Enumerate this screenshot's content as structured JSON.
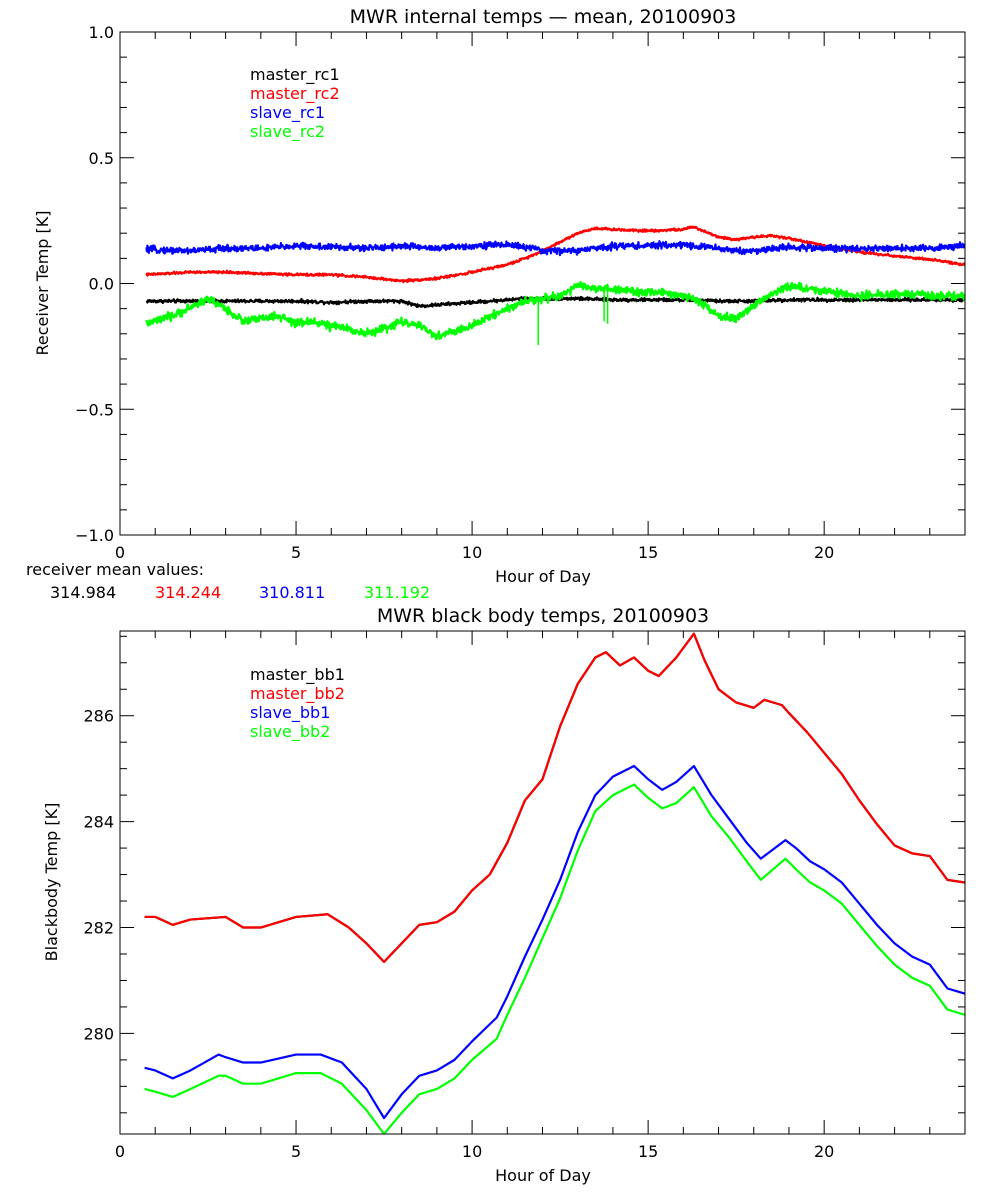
{
  "chart_data": [
    {
      "type": "line",
      "title": "MWR internal temps — mean, 20100903",
      "xlabel": "Hour of Day",
      "ylabel": "Receiver Temp [K]",
      "xlim": [
        0,
        24
      ],
      "ylim": [
        -1.0,
        1.0
      ],
      "xticks": [
        0,
        5,
        10,
        15,
        20
      ],
      "xtick_labels": [
        "0",
        "5",
        "10",
        "15",
        "20"
      ],
      "yticks": [
        -1.0,
        -0.5,
        0.0,
        0.5,
        1.0
      ],
      "ytick_labels": [
        "−1.0",
        "−0.5",
        "0.0",
        "0.5",
        "1.0"
      ],
      "grid": false,
      "legend_position": "top-left",
      "series": [
        {
          "name": "master_rc1",
          "color": "#000000",
          "noise": 0.004,
          "x": [
            0.75,
            2,
            3,
            4,
            5,
            6,
            7,
            8,
            8.5,
            9,
            10,
            11,
            11.5,
            12,
            13,
            14,
            15,
            16,
            17,
            18,
            19,
            20,
            21,
            22,
            23,
            24
          ],
          "y": [
            -0.07,
            -0.07,
            -0.07,
            -0.07,
            -0.07,
            -0.075,
            -0.07,
            -0.07,
            -0.09,
            -0.085,
            -0.075,
            -0.065,
            -0.06,
            -0.06,
            -0.06,
            -0.065,
            -0.065,
            -0.065,
            -0.07,
            -0.07,
            -0.065,
            -0.065,
            -0.065,
            -0.065,
            -0.065,
            -0.065
          ]
        },
        {
          "name": "master_rc2",
          "color": "#ff0000",
          "noise": 0.003,
          "x": [
            0.75,
            2,
            3,
            4,
            5,
            6,
            7,
            8,
            9,
            10,
            11,
            11.5,
            12,
            13,
            13.5,
            14,
            15,
            16,
            16.3,
            17,
            17.5,
            18,
            18.5,
            19,
            20,
            21,
            22,
            23,
            24
          ],
          "y": [
            0.035,
            0.045,
            0.045,
            0.04,
            0.035,
            0.035,
            0.025,
            0.01,
            0.02,
            0.045,
            0.075,
            0.1,
            0.13,
            0.2,
            0.22,
            0.215,
            0.21,
            0.215,
            0.225,
            0.185,
            0.175,
            0.185,
            0.19,
            0.18,
            0.15,
            0.125,
            0.11,
            0.095,
            0.075
          ]
        },
        {
          "name": "slave_rc1",
          "color": "#0000ff",
          "noise": 0.008,
          "x": [
            0.75,
            2,
            3,
            4,
            5,
            6,
            7,
            8,
            9,
            10,
            11,
            11.5,
            12,
            13,
            14,
            15,
            16,
            17,
            17.5,
            18,
            19,
            20,
            21,
            22,
            23,
            24
          ],
          "y": [
            0.135,
            0.13,
            0.14,
            0.14,
            0.15,
            0.145,
            0.14,
            0.15,
            0.14,
            0.15,
            0.155,
            0.145,
            0.13,
            0.13,
            0.15,
            0.15,
            0.155,
            0.14,
            0.13,
            0.13,
            0.145,
            0.14,
            0.14,
            0.14,
            0.14,
            0.15
          ]
        },
        {
          "name": "slave_rc2",
          "color": "#00ff00",
          "noise": 0.01,
          "x": [
            0.75,
            1.5,
            2.5,
            3,
            3.5,
            4,
            4.5,
            5,
            5.5,
            6,
            6.5,
            7,
            7.5,
            8,
            8.5,
            9,
            9.5,
            10,
            10.5,
            11,
            11.5,
            12,
            12.5,
            13,
            14,
            15,
            16,
            16.5,
            17,
            17.5,
            18,
            18.5,
            19,
            20,
            21,
            22,
            23,
            24
          ],
          "y": [
            -0.16,
            -0.13,
            -0.06,
            -0.1,
            -0.15,
            -0.14,
            -0.13,
            -0.16,
            -0.15,
            -0.17,
            -0.18,
            -0.2,
            -0.18,
            -0.15,
            -0.17,
            -0.21,
            -0.19,
            -0.17,
            -0.13,
            -0.1,
            -0.07,
            -0.06,
            -0.05,
            -0.01,
            -0.025,
            -0.035,
            -0.045,
            -0.08,
            -0.13,
            -0.14,
            -0.09,
            -0.04,
            -0.01,
            -0.03,
            -0.05,
            -0.04,
            -0.05,
            -0.05
          ],
          "spikes": [
            {
              "x": 11.88,
              "y": -0.245
            },
            {
              "x": 13.75,
              "y": -0.15
            },
            {
              "x": 13.85,
              "y": -0.16
            }
          ]
        }
      ]
    },
    {
      "type": "line",
      "title": "MWR black body temps, 20100903",
      "xlabel": "Hour of Day",
      "ylabel": "Blackbody Temp [K]",
      "xlim": [
        0,
        24
      ],
      "ylim": [
        278.1,
        287.6
      ],
      "xticks": [
        0,
        5,
        10,
        15,
        20
      ],
      "xtick_labels": [
        "0",
        "5",
        "10",
        "15",
        "20"
      ],
      "yticks": [
        280,
        282,
        284,
        286
      ],
      "ytick_labels": [
        "280",
        "282",
        "284",
        "286"
      ],
      "grid": false,
      "legend_position": "top-left",
      "series": [
        {
          "name": "master_bb1",
          "color": "#000000",
          "x": [
            0.7,
            1,
            1.5,
            2,
            3,
            3.5,
            4,
            5,
            5.9,
            6.5,
            7,
            7.5,
            8,
            8.5,
            9,
            9.5,
            10,
            10.5,
            11,
            11.5,
            12,
            12.5,
            13,
            13.5,
            13.8,
            14.2,
            14.6,
            15,
            15.3,
            15.8,
            16.3,
            16.6,
            17,
            17.5,
            18,
            18.3,
            18.8,
            19,
            19.5,
            20,
            20.5,
            21,
            21.5,
            22,
            22.5,
            23,
            23.5,
            24
          ],
          "y": [
            282.2,
            282.2,
            282.05,
            282.15,
            282.2,
            282.0,
            282.0,
            282.2,
            282.25,
            282.0,
            281.7,
            281.35,
            281.7,
            282.05,
            282.1,
            282.3,
            282.7,
            283.0,
            283.6,
            284.4,
            284.8,
            285.8,
            286.6,
            287.1,
            287.2,
            286.95,
            287.1,
            286.85,
            286.75,
            287.1,
            287.55,
            287.05,
            286.5,
            286.25,
            286.15,
            286.3,
            286.2,
            286.05,
            285.7,
            285.3,
            284.9,
            284.4,
            283.95,
            283.55,
            283.4,
            283.35,
            282.9,
            282.85
          ]
        },
        {
          "name": "master_bb2",
          "color": "#ff0000",
          "x": [
            0.7,
            1,
            1.5,
            2,
            3,
            3.5,
            4,
            5,
            5.9,
            6.5,
            7,
            7.5,
            8,
            8.5,
            9,
            9.5,
            10,
            10.5,
            11,
            11.5,
            12,
            12.5,
            13,
            13.5,
            13.8,
            14.2,
            14.6,
            15,
            15.3,
            15.8,
            16.3,
            16.6,
            17,
            17.5,
            18,
            18.3,
            18.8,
            19,
            19.5,
            20,
            20.5,
            21,
            21.5,
            22,
            22.5,
            23,
            23.5,
            24
          ],
          "y": [
            282.2,
            282.2,
            282.05,
            282.15,
            282.2,
            282.0,
            282.0,
            282.2,
            282.25,
            282.0,
            281.7,
            281.35,
            281.7,
            282.05,
            282.1,
            282.3,
            282.7,
            283.0,
            283.6,
            284.4,
            284.8,
            285.8,
            286.6,
            287.1,
            287.2,
            286.95,
            287.1,
            286.85,
            286.75,
            287.1,
            287.55,
            287.05,
            286.5,
            286.25,
            286.15,
            286.3,
            286.2,
            286.05,
            285.7,
            285.3,
            284.9,
            284.4,
            283.95,
            283.55,
            283.4,
            283.35,
            282.9,
            282.85
          ]
        },
        {
          "name": "slave_bb1",
          "color": "#0000ff",
          "x": [
            0.7,
            1,
            1.5,
            2,
            2.8,
            3,
            3.5,
            4,
            5,
            5.7,
            6.3,
            7,
            7.5,
            8,
            8.5,
            9,
            9.5,
            10,
            10.7,
            11,
            11.5,
            12,
            12.5,
            13,
            13.5,
            14,
            14.6,
            15,
            15.4,
            15.8,
            16.3,
            16.8,
            17.3,
            17.8,
            18.2,
            18.9,
            19.2,
            19.6,
            20,
            20.5,
            21,
            21.5,
            22,
            22.5,
            23,
            23.5,
            24
          ],
          "y": [
            279.35,
            279.3,
            279.15,
            279.3,
            279.6,
            279.55,
            279.45,
            279.45,
            279.6,
            279.6,
            279.45,
            278.95,
            278.4,
            278.85,
            279.2,
            279.3,
            279.5,
            279.85,
            280.3,
            280.7,
            281.45,
            282.15,
            282.9,
            283.8,
            284.5,
            284.85,
            285.05,
            284.8,
            284.6,
            284.75,
            285.05,
            284.5,
            284.05,
            283.6,
            283.3,
            283.65,
            283.5,
            283.25,
            283.1,
            282.85,
            282.45,
            282.05,
            281.7,
            281.45,
            281.3,
            280.85,
            280.75
          ]
        },
        {
          "name": "slave_bb2",
          "color": "#00ff00",
          "x": [
            0.7,
            1,
            1.5,
            2,
            2.8,
            3,
            3.5,
            4,
            5,
            5.7,
            6.3,
            7,
            7.5,
            8,
            8.5,
            9,
            9.5,
            10,
            10.7,
            11,
            11.5,
            12,
            12.5,
            13,
            13.5,
            14,
            14.6,
            15,
            15.4,
            15.8,
            16.3,
            16.8,
            17.3,
            17.8,
            18.2,
            18.9,
            19.2,
            19.6,
            20,
            20.5,
            21,
            21.5,
            22,
            22.5,
            23,
            23.5,
            24
          ],
          "y": [
            278.95,
            278.9,
            278.8,
            278.95,
            279.2,
            279.2,
            279.05,
            279.05,
            279.25,
            279.25,
            279.05,
            278.55,
            278.1,
            278.5,
            278.85,
            278.95,
            279.15,
            279.5,
            279.9,
            280.35,
            281.05,
            281.8,
            282.55,
            283.45,
            284.2,
            284.5,
            284.7,
            284.45,
            284.25,
            284.35,
            284.65,
            284.1,
            283.7,
            283.25,
            282.9,
            283.3,
            283.1,
            282.85,
            282.7,
            282.45,
            282.05,
            281.65,
            281.3,
            281.05,
            280.9,
            280.45,
            280.35
          ]
        }
      ]
    }
  ],
  "receiver_means": {
    "label": "receiver mean values:",
    "values": [
      {
        "text": "314.984",
        "color": "#000000"
      },
      {
        "text": "314.244",
        "color": "#ff0000"
      },
      {
        "text": "310.811",
        "color": "#0000ff"
      },
      {
        "text": "311.192",
        "color": "#00ff00"
      }
    ]
  }
}
